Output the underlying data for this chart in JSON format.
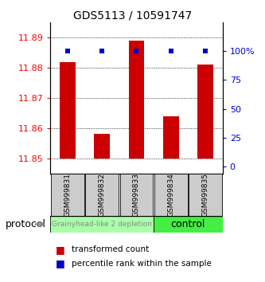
{
  "title": "GDS5113 / 10591747",
  "samples": [
    "GSM999831",
    "GSM999832",
    "GSM999833",
    "GSM999834",
    "GSM999835"
  ],
  "red_values": [
    11.882,
    11.858,
    11.889,
    11.864,
    11.881
  ],
  "blue_values": [
    100,
    100,
    100,
    100,
    100
  ],
  "baseline": 11.85,
  "ylim_left": [
    11.845,
    11.895
  ],
  "ylim_right": [
    -6.25,
    125
  ],
  "yticks_left": [
    11.85,
    11.86,
    11.87,
    11.88,
    11.89
  ],
  "yticks_right": [
    0,
    25,
    50,
    75,
    100
  ],
  "ytick_labels_right": [
    "0",
    "25",
    "50",
    "75",
    "100%"
  ],
  "group1_label": "Grainyhead-like 2 depletion",
  "group2_label": "control",
  "protocol_label": "protocol",
  "legend_red": "transformed count",
  "legend_blue": "percentile rank within the sample",
  "bar_color": "#cc0000",
  "blue_color": "#0000cc",
  "group1_bg": "#aaffaa",
  "group2_bg": "#44ee44",
  "tick_bg": "#cccccc",
  "bar_width": 0.45,
  "title_fontsize": 10,
  "tick_fontsize": 8,
  "label_fontsize": 7,
  "legend_fontsize": 7.5
}
